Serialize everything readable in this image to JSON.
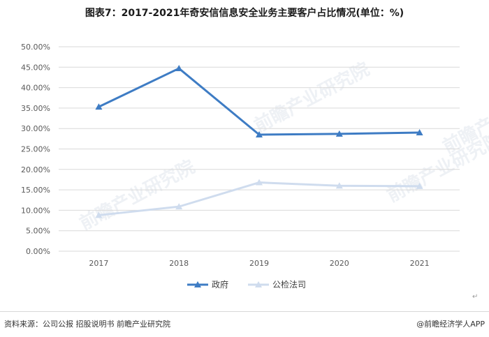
{
  "page": {
    "source": "资料来源：公司公报 招股说明书 前瞻产业研究院",
    "credit": "@前瞻经济学人APP",
    "watermark": "前瞻产业研究院",
    "return_mark": "↵"
  },
  "chart_data": {
    "type": "line",
    "title": "图表7：2017-2021年奇安信信息安全业务主要客户占比情况(单位：%)",
    "categories": [
      "2017",
      "2018",
      "2019",
      "2020",
      "2021"
    ],
    "y_ticks": [
      "0.00%",
      "5.00%",
      "10.00%",
      "15.00%",
      "20.00%",
      "25.00%",
      "30.00%",
      "35.00%",
      "40.00%",
      "45.00%",
      "50.00%"
    ],
    "ylim": [
      0,
      50
    ],
    "grid": true,
    "legend_position": "bottom",
    "series": [
      {
        "name": "政府",
        "values": [
          35.3,
          44.7,
          28.5,
          28.7,
          29.0
        ],
        "color": "#3e7cc4",
        "marker": "triangle"
      },
      {
        "name": "公检法司",
        "values": [
          8.8,
          10.9,
          16.8,
          16.0,
          15.9
        ],
        "color": "#cfdcee",
        "marker": "triangle"
      }
    ]
  }
}
